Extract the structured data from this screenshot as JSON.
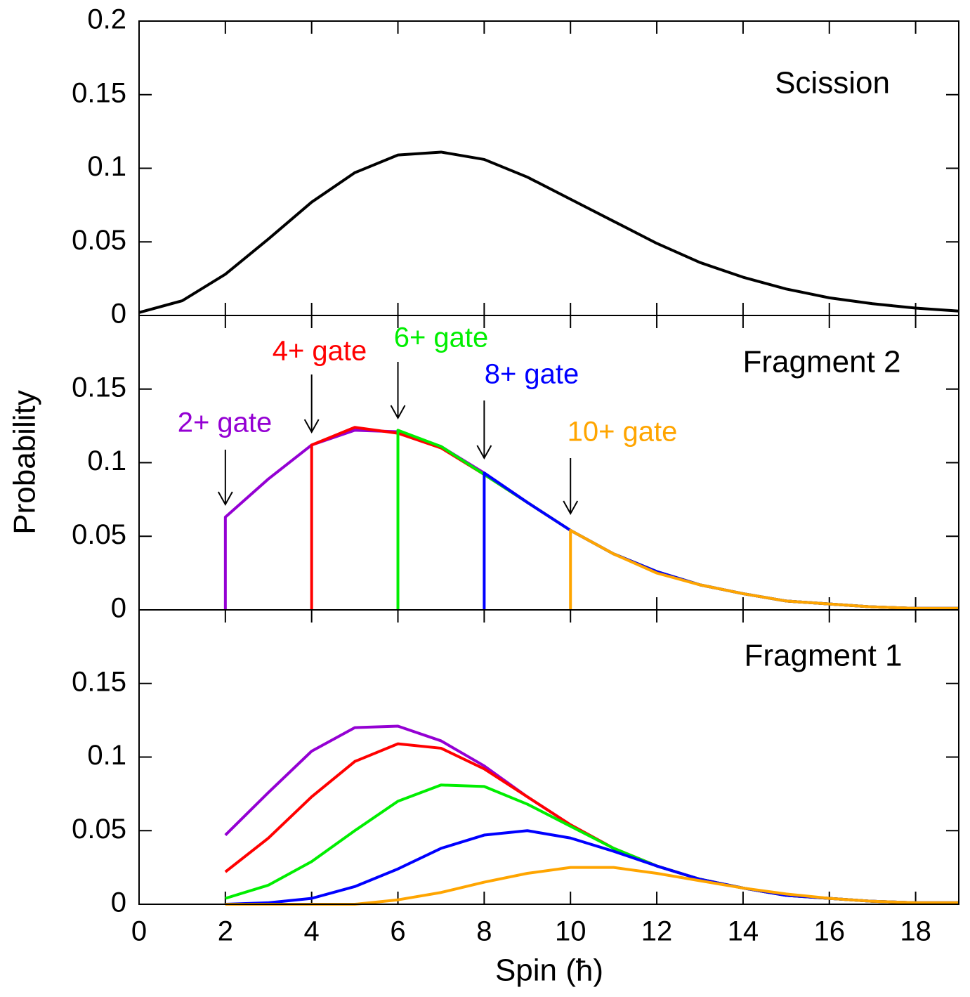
{
  "chart_data": [
    {
      "type": "line",
      "title": "Scission",
      "xlim": [
        0,
        19
      ],
      "ylim": [
        0,
        0.2
      ],
      "yticks": [
        0,
        0.05,
        0.1,
        0.15,
        0.2
      ],
      "series": [
        {
          "color": "#000000",
          "x": [
            0,
            1,
            2,
            3,
            4,
            5,
            6,
            7,
            8,
            9,
            10,
            11,
            12,
            13,
            14,
            15,
            16,
            17,
            18,
            19
          ],
          "values": [
            0.002,
            0.01,
            0.028,
            0.052,
            0.077,
            0.097,
            0.109,
            0.111,
            0.106,
            0.094,
            0.079,
            0.064,
            0.049,
            0.036,
            0.026,
            0.018,
            0.012,
            0.008,
            0.005,
            0.003
          ]
        }
      ]
    },
    {
      "type": "line",
      "title": "Fragment 2",
      "ylabel": "Probability",
      "xlim": [
        0,
        19
      ],
      "ylim": [
        0,
        0.2
      ],
      "yticks": [
        0,
        0.05,
        0.1,
        0.15
      ],
      "series": [
        {
          "name": "2+ gate",
          "color": "#9400d3",
          "x": [
            2,
            2,
            3,
            4,
            5,
            6,
            7,
            8,
            9,
            10,
            11,
            12,
            13,
            14,
            15,
            16,
            17,
            18,
            19
          ],
          "values": [
            0,
            0.063,
            0.089,
            0.112,
            0.122,
            0.121,
            0.111,
            0.093,
            0.073,
            0.054,
            0.038,
            0.026,
            0.017,
            0.011,
            0.006,
            0.004,
            0.002,
            0.001,
            0.001
          ]
        },
        {
          "name": "4+ gate",
          "color": "#ff0000",
          "x": [
            4,
            4,
            5,
            6,
            7,
            8,
            9,
            10,
            11,
            12,
            13,
            14,
            15,
            16,
            17,
            18,
            19
          ],
          "values": [
            0,
            0.112,
            0.124,
            0.12,
            0.11,
            0.092,
            0.073,
            0.054,
            0.038,
            0.026,
            0.017,
            0.011,
            0.006,
            0.004,
            0.002,
            0.001,
            0.001
          ]
        },
        {
          "name": "6+ gate",
          "color": "#00ee00",
          "x": [
            6,
            6,
            7,
            8,
            9,
            10,
            11,
            12,
            13,
            14,
            15,
            16,
            17,
            18,
            19
          ],
          "values": [
            0,
            0.122,
            0.111,
            0.092,
            0.073,
            0.054,
            0.038,
            0.026,
            0.017,
            0.011,
            0.006,
            0.004,
            0.002,
            0.001,
            0.001
          ]
        },
        {
          "name": "8+ gate",
          "color": "#0000ff",
          "x": [
            8,
            8,
            9,
            10,
            11,
            12,
            13,
            14,
            15,
            16,
            17,
            18,
            19
          ],
          "values": [
            0,
            0.093,
            0.073,
            0.054,
            0.038,
            0.026,
            0.017,
            0.011,
            0.006,
            0.004,
            0.002,
            0.001,
            0.001
          ]
        },
        {
          "name": "10+ gate",
          "color": "#ffa500",
          "x": [
            10,
            10,
            11,
            12,
            13,
            14,
            15,
            16,
            17,
            18,
            19
          ],
          "values": [
            0,
            0.054,
            0.038,
            0.025,
            0.017,
            0.011,
            0.006,
            0.004,
            0.002,
            0.001,
            0.001
          ]
        }
      ]
    },
    {
      "type": "line",
      "title": "Fragment 1",
      "xlabel": "Spin (ħ)",
      "xlim": [
        0,
        19
      ],
      "xticks": [
        0,
        2,
        4,
        6,
        8,
        10,
        12,
        14,
        16,
        18
      ],
      "ylim": [
        0,
        0.2
      ],
      "yticks": [
        0,
        0.05,
        0.1,
        0.15
      ],
      "series": [
        {
          "color": "#9400d3",
          "x": [
            2,
            3,
            4,
            5,
            6,
            7,
            8,
            9,
            10,
            11,
            12,
            13,
            14,
            15,
            16,
            17,
            18,
            19
          ],
          "values": [
            0.047,
            0.076,
            0.104,
            0.12,
            0.121,
            0.111,
            0.094,
            0.073,
            0.054,
            0.038,
            0.026,
            0.017,
            0.011,
            0.006,
            0.004,
            0.002,
            0.001,
            0.001
          ]
        },
        {
          "color": "#ff0000",
          "x": [
            2,
            3,
            4,
            5,
            6,
            7,
            8,
            9,
            10,
            11,
            12,
            13,
            14,
            15,
            16,
            17,
            18,
            19
          ],
          "values": [
            0.022,
            0.045,
            0.073,
            0.097,
            0.109,
            0.106,
            0.092,
            0.073,
            0.054,
            0.038,
            0.026,
            0.017,
            0.011,
            0.006,
            0.004,
            0.002,
            0.001,
            0.001
          ]
        },
        {
          "color": "#00ee00",
          "x": [
            2,
            3,
            4,
            5,
            6,
            7,
            8,
            9,
            10,
            11,
            12,
            13,
            14,
            15,
            16,
            17,
            18,
            19
          ],
          "values": [
            0.004,
            0.013,
            0.029,
            0.05,
            0.07,
            0.081,
            0.08,
            0.068,
            0.053,
            0.038,
            0.026,
            0.017,
            0.011,
            0.006,
            0.004,
            0.002,
            0.001,
            0.001
          ]
        },
        {
          "color": "#0000ff",
          "x": [
            2,
            3,
            4,
            5,
            6,
            7,
            8,
            9,
            10,
            11,
            12,
            13,
            14,
            15,
            16,
            17,
            18,
            19
          ],
          "values": [
            0,
            0.001,
            0.004,
            0.012,
            0.024,
            0.038,
            0.047,
            0.05,
            0.045,
            0.036,
            0.026,
            0.017,
            0.011,
            0.006,
            0.004,
            0.002,
            0.001,
            0.001
          ]
        },
        {
          "color": "#ffa500",
          "x": [
            2,
            3,
            4,
            5,
            6,
            7,
            8,
            9,
            10,
            11,
            12,
            13,
            14,
            15,
            16,
            17,
            18,
            19
          ],
          "values": [
            0,
            0,
            0,
            0,
            0.003,
            0.008,
            0.015,
            0.021,
            0.025,
            0.025,
            0.021,
            0.016,
            0.011,
            0.007,
            0.004,
            0.002,
            0.001,
            0.001
          ]
        }
      ]
    }
  ]
}
